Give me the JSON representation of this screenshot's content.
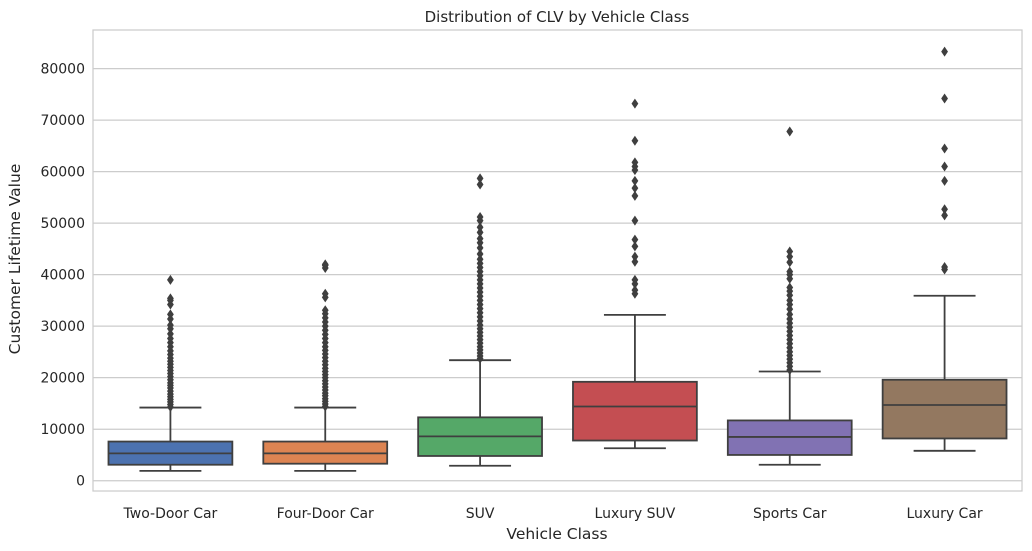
{
  "chart_data": {
    "type": "box",
    "title": "Distribution of CLV by Vehicle Class",
    "xlabel": "Vehicle Class",
    "ylabel": "Customer Lifetime Value",
    "ylim": [
      -2000,
      87500
    ],
    "yticks": [
      0,
      10000,
      20000,
      30000,
      40000,
      50000,
      60000,
      70000,
      80000
    ],
    "ytick_labels": [
      "0",
      "10000",
      "20000",
      "30000",
      "40000",
      "50000",
      "60000",
      "70000",
      "80000"
    ],
    "grid": true,
    "categories": [
      "Two-Door Car",
      "Four-Door Car",
      "SUV",
      "Luxury SUV",
      "Sports Car",
      "Luxury Car"
    ],
    "boxes": [
      {
        "name": "Two-Door Car",
        "color": "#4c72b0",
        "whisker_low": 1900,
        "q1": 3100,
        "median": 5300,
        "q3": 7600,
        "whisker_high": 14200,
        "outliers": [
          14300,
          14800,
          15300,
          15800,
          16300,
          16800,
          17400,
          18000,
          18500,
          19000,
          19600,
          20200,
          20800,
          21400,
          22000,
          22600,
          23200,
          23800,
          24500,
          25200,
          26000,
          26800,
          27600,
          28500,
          29500,
          30200,
          31400,
          32300,
          34200,
          35000,
          35400,
          39000
        ]
      },
      {
        "name": "Four-Door Car",
        "color": "#dd8452",
        "whisker_low": 1900,
        "q1": 3300,
        "median": 5300,
        "q3": 7600,
        "whisker_high": 14200,
        "outliers": [
          14400,
          14900,
          15400,
          15900,
          16500,
          17000,
          17600,
          18200,
          18800,
          19400,
          20000,
          20600,
          21200,
          21800,
          22500,
          23200,
          23900,
          24600,
          25300,
          26000,
          26800,
          27600,
          28400,
          29200,
          30000,
          30800,
          31600,
          32400,
          33100,
          35600,
          36300,
          41300,
          41800,
          42000
        ]
      },
      {
        "name": "SUV",
        "color": "#55a868",
        "whisker_low": 2900,
        "q1": 4800,
        "median": 8600,
        "q3": 12300,
        "whisker_high": 23400,
        "outliers": [
          23700,
          24200,
          24800,
          25400,
          26000,
          26700,
          27400,
          28100,
          28800,
          29500,
          30200,
          31000,
          31800,
          32600,
          33400,
          34200,
          35000,
          35800,
          36600,
          37400,
          38200,
          39000,
          39800,
          40600,
          41400,
          42200,
          43000,
          44000,
          45200,
          46200,
          47000,
          48200,
          49200,
          50500,
          51200,
          57500,
          58700
        ]
      },
      {
        "name": "Luxury SUV",
        "color": "#c44e52",
        "whisker_low": 6300,
        "q1": 7800,
        "median": 14400,
        "q3": 19200,
        "whisker_high": 32200,
        "outliers": [
          36300,
          37000,
          38200,
          39000,
          42500,
          43500,
          45500,
          46800,
          50500,
          55300,
          56800,
          58200,
          60300,
          61000,
          61800,
          66000,
          73200
        ]
      },
      {
        "name": "Sports Car",
        "color": "#8172b3",
        "whisker_low": 3100,
        "q1": 5000,
        "median": 8500,
        "q3": 11700,
        "whisker_high": 21200,
        "outliers": [
          21500,
          22200,
          22900,
          23600,
          24300,
          25000,
          25800,
          26600,
          27400,
          28200,
          29000,
          29800,
          30600,
          31400,
          32300,
          33300,
          34200,
          35000,
          36000,
          36800,
          37500,
          39200,
          40000,
          40600,
          42400,
          43500,
          44500,
          67800
        ]
      },
      {
        "name": "Luxury Car",
        "color": "#937860",
        "whisker_low": 5800,
        "q1": 8200,
        "median": 14700,
        "q3": 19600,
        "whisker_high": 35900,
        "outliers": [
          41000,
          41500,
          51500,
          52700,
          58200,
          61000,
          64500,
          74200,
          83300
        ]
      }
    ]
  }
}
